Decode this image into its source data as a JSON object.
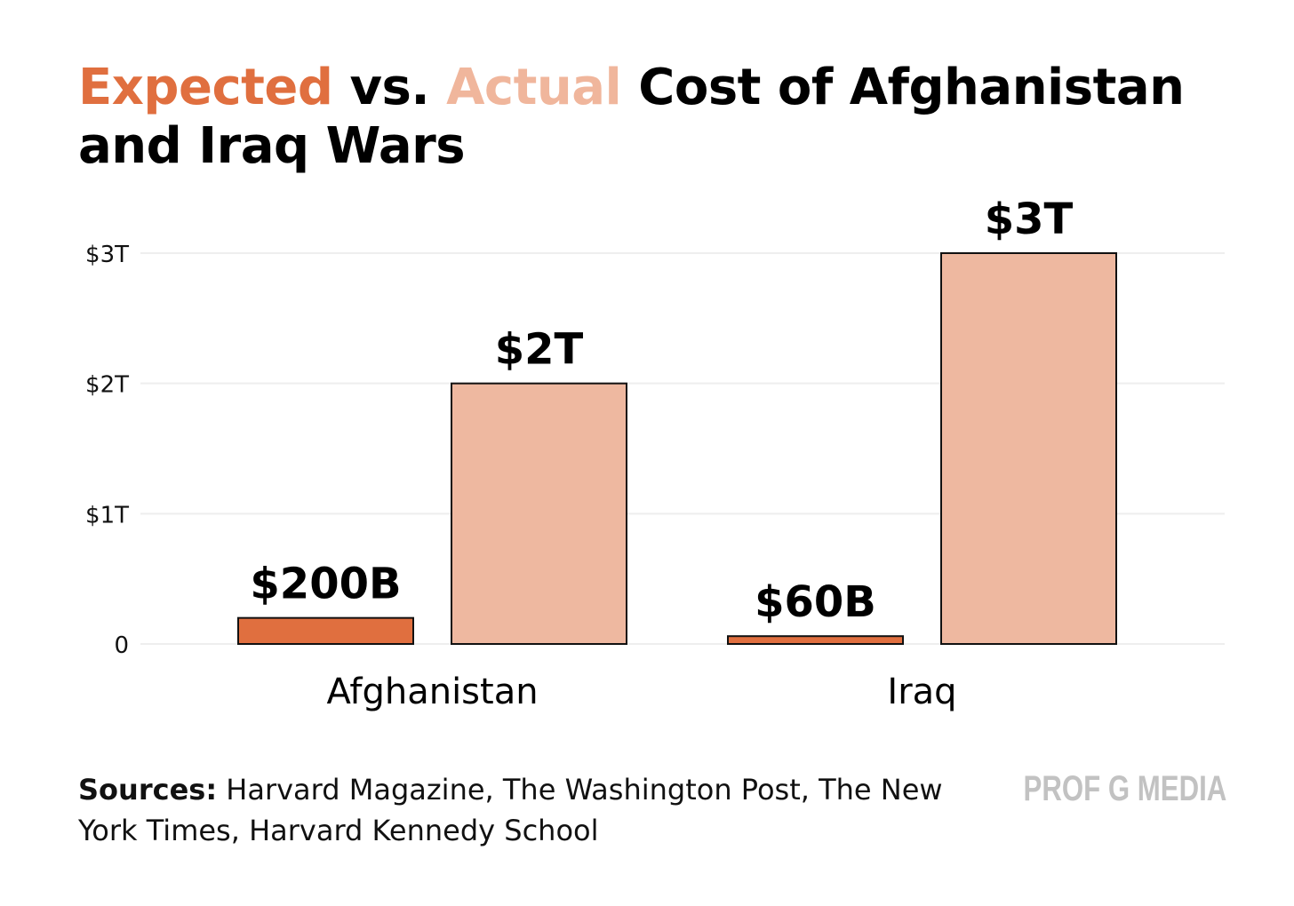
{
  "title": {
    "part_expected": "Expected",
    "part_vs": " vs. ",
    "part_actual": "Actual",
    "part_rest": " Cost of Afghanistan and Iraq Wars"
  },
  "colors": {
    "expected": "#e06f3f",
    "actual": "#eeb8a0",
    "bar_stroke": "#111111",
    "grid": "#eeeeee"
  },
  "sources": {
    "label": "Sources:",
    "text": " Harvard Magazine, The Washington Post, The New York Times, Harvard Kennedy School"
  },
  "brand": "PROF G MEDIA",
  "chart_data": {
    "type": "bar",
    "title": "Expected vs. Actual Cost of Afghanistan and Iraq Wars",
    "categories": [
      "Afghanistan",
      "Iraq"
    ],
    "series": [
      {
        "name": "Expected",
        "values": [
          0.2,
          0.06
        ],
        "labels": [
          "$200B",
          "$60B"
        ]
      },
      {
        "name": "Actual",
        "values": [
          2,
          3
        ],
        "labels": [
          "$2T",
          "$3T"
        ]
      }
    ],
    "unit": "trillion USD",
    "ylim": [
      0,
      3
    ],
    "yticks": [
      0,
      1,
      2,
      3
    ],
    "ytick_labels": [
      "0",
      "$1T",
      "$2T",
      "$3T"
    ],
    "grid": true,
    "legend": "in title"
  }
}
